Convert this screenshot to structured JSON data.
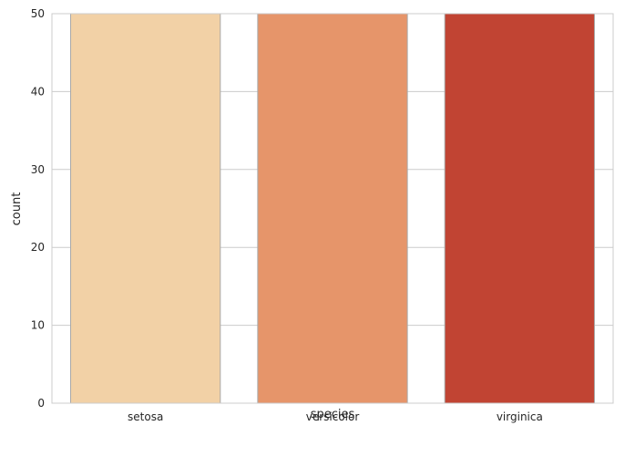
{
  "chart_data": {
    "type": "bar",
    "categories": [
      "setosa",
      "versicolor",
      "virginica"
    ],
    "values": [
      50,
      50,
      50
    ],
    "title": "",
    "xlabel": "species",
    "ylabel": "count",
    "ylim": [
      0,
      50
    ],
    "yticks": [
      0,
      10,
      20,
      30,
      40,
      50
    ],
    "grid": true,
    "colors": [
      "#f2d1a6",
      "#e6956a",
      "#c14433"
    ],
    "edge_color": "#a8a8a8",
    "grid_color": "#cccccc",
    "spine_color": "#cccccc"
  }
}
